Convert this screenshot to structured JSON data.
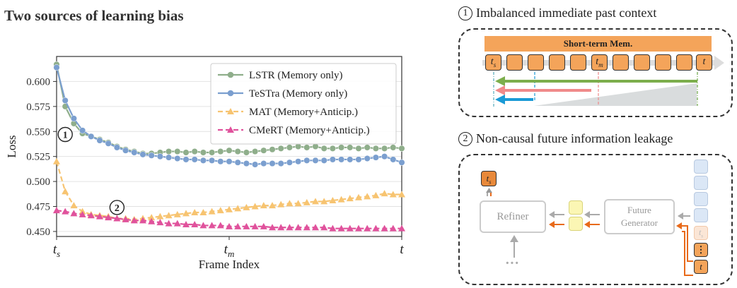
{
  "figure_title": "Two sources of learning bias",
  "chart_data": {
    "type": "line",
    "xlabel": "Frame Index",
    "ylabel": "Loss",
    "ylim": [
      0.445,
      0.625
    ],
    "yticks": [
      "0.450",
      "0.475",
      "0.500",
      "0.525",
      "0.550",
      "0.575",
      "0.600"
    ],
    "xticks": [
      {
        "base": "t",
        "sub": "s",
        "pos": 0
      },
      {
        "base": "t",
        "sub": "m",
        "pos": 20
      },
      {
        "base": "t",
        "sub": "",
        "pos": 40
      }
    ],
    "grid": true,
    "legend": "top-right",
    "annotations": [
      {
        "text": "1",
        "x": 1,
        "y": 0.547
      },
      {
        "text": "2",
        "x": 7,
        "y": 0.474
      }
    ],
    "series": [
      {
        "name": "LSTR (Memory only)",
        "color": "#8fae8b",
        "dash": false,
        "marker": "circle",
        "values": [
          0.617,
          0.575,
          0.558,
          0.548,
          0.545,
          0.542,
          0.539,
          0.535,
          0.532,
          0.53,
          0.528,
          0.528,
          0.529,
          0.53,
          0.53,
          0.529,
          0.53,
          0.529,
          0.529,
          0.53,
          0.531,
          0.53,
          0.529,
          0.53,
          0.531,
          0.532,
          0.533,
          0.534,
          0.535,
          0.534,
          0.535,
          0.533,
          0.533,
          0.534,
          0.534,
          0.533,
          0.534,
          0.533,
          0.533,
          0.534,
          0.533
        ]
      },
      {
        "name": "TeSTra (Memory only)",
        "color": "#7b9fcf",
        "dash": false,
        "marker": "circle",
        "values": [
          0.614,
          0.581,
          0.563,
          0.551,
          0.545,
          0.541,
          0.538,
          0.534,
          0.531,
          0.529,
          0.527,
          0.526,
          0.525,
          0.524,
          0.523,
          0.522,
          0.522,
          0.521,
          0.521,
          0.52,
          0.52,
          0.519,
          0.518,
          0.517,
          0.518,
          0.518,
          0.518,
          0.519,
          0.52,
          0.521,
          0.521,
          0.521,
          0.522,
          0.522,
          0.522,
          0.522,
          0.523,
          0.524,
          0.525,
          0.522,
          0.519
        ]
      },
      {
        "name": "MAT (Memory+Anticip.)",
        "color": "#f7c471",
        "dash": true,
        "marker": "triangle",
        "values": [
          0.52,
          0.49,
          0.476,
          0.47,
          0.467,
          0.466,
          0.465,
          0.463,
          0.463,
          0.462,
          0.463,
          0.464,
          0.465,
          0.466,
          0.467,
          0.468,
          0.469,
          0.469,
          0.47,
          0.471,
          0.472,
          0.473,
          0.474,
          0.475,
          0.476,
          0.476,
          0.477,
          0.478,
          0.478,
          0.479,
          0.48,
          0.48,
          0.481,
          0.482,
          0.483,
          0.484,
          0.485,
          0.486,
          0.488,
          0.487,
          0.487
        ]
      },
      {
        "name": "CMeRT (Memory+Anticip.)",
        "color": "#e0529c",
        "dash": true,
        "marker": "triangle",
        "values": [
          0.471,
          0.47,
          0.468,
          0.467,
          0.466,
          0.465,
          0.464,
          0.463,
          0.462,
          0.461,
          0.461,
          0.46,
          0.459,
          0.458,
          0.458,
          0.457,
          0.457,
          0.456,
          0.456,
          0.456,
          0.455,
          0.455,
          0.455,
          0.455,
          0.455,
          0.454,
          0.454,
          0.454,
          0.454,
          0.454,
          0.454,
          0.454,
          0.453,
          0.453,
          0.453,
          0.453,
          0.453,
          0.453,
          0.453,
          0.453,
          0.453
        ]
      }
    ]
  },
  "panel1": {
    "num": "1",
    "heading": "Imbalanced immediate past context",
    "memory_label": "Short-term Mem.",
    "cell_ts_base": "t",
    "cell_ts_sub": "s",
    "cell_tm_base": "t",
    "cell_tm_sub": "m",
    "cell_t": "t"
  },
  "panel2": {
    "num": "2",
    "heading": "Non-causal future information leakage",
    "refiner": "Refiner",
    "generator_line1": "Future",
    "generator_line2": "Generator",
    "out_base": "t",
    "out_sub": "s",
    "stack_ts_base": "t",
    "stack_ts_sub": "s",
    "stack_dots": "⋮",
    "stack_t": "t",
    "ellipsis": "···"
  }
}
